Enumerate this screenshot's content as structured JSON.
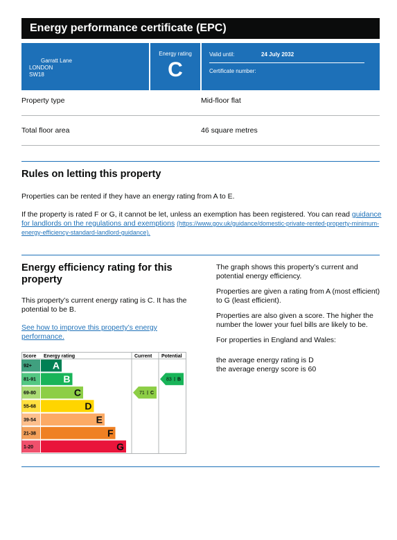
{
  "header": {
    "title": "Energy performance certificate (EPC)"
  },
  "summary": {
    "address": [
      "Garratt Lane",
      "LONDON",
      "SW18"
    ],
    "rating_label": "Energy rating",
    "rating": "C",
    "valid_until_label": "Valid until:",
    "valid_until": "24 July 2032",
    "certificate_number_label": "Certificate number:"
  },
  "properties": [
    {
      "label": "Property type",
      "value": "Mid-floor flat"
    },
    {
      "label": "Total floor area",
      "value": "46 square metres"
    }
  ],
  "letting": {
    "heading": "Rules on letting this property",
    "paragraph_1": "Properties can be rented if they have an energy rating from A to E.",
    "paragraph_2": "If the property is rated F or G, it cannot be let, unless an exemption has been registered. You can read",
    "link_text": "guidance for landlords on the regulations and exemptions",
    "link_url": "(https://www.gov.uk/guidance/domestic-private-rented-property-minimum-energy-efficiency-standard-landlord-guidance)."
  },
  "efficiency": {
    "heading": "Energy efficiency rating for this property",
    "paragraph": "This property’s current energy rating is C. It has the potential to be B.",
    "link_text": "See how to improve this property’s energy performance.",
    "notes": [
      "The graph shows this property’s current and potential energy efficiency.",
      "Properties are given a rating from A (most efficient) to G (least efficient).",
      "Properties are also given a score. The higher the number the lower your fuel bills are likely to be.",
      "For properties in England and Wales:"
    ],
    "averages": [
      "the average energy rating is D",
      "the average energy score is 60"
    ],
    "chart": {
      "headers": [
        "Score",
        "Energy rating",
        "Current",
        "Potential"
      ],
      "bands": [
        {
          "score": "92+",
          "letter": "A",
          "color": "#008054"
        },
        {
          "score": "81-91",
          "letter": "B",
          "color": "#19b459"
        },
        {
          "score": "69-80",
          "letter": "C",
          "color": "#8dce46"
        },
        {
          "score": "55-68",
          "letter": "D",
          "color": "#ffd500"
        },
        {
          "score": "39-54",
          "letter": "E",
          "color": "#fcaa65"
        },
        {
          "score": "21-38",
          "letter": "F",
          "color": "#ef8023"
        },
        {
          "score": "1-20",
          "letter": "G",
          "color": "#e9153b"
        }
      ],
      "current": {
        "score": 71,
        "rating": "C"
      },
      "potential": {
        "score": 83,
        "rating": "B"
      }
    }
  }
}
